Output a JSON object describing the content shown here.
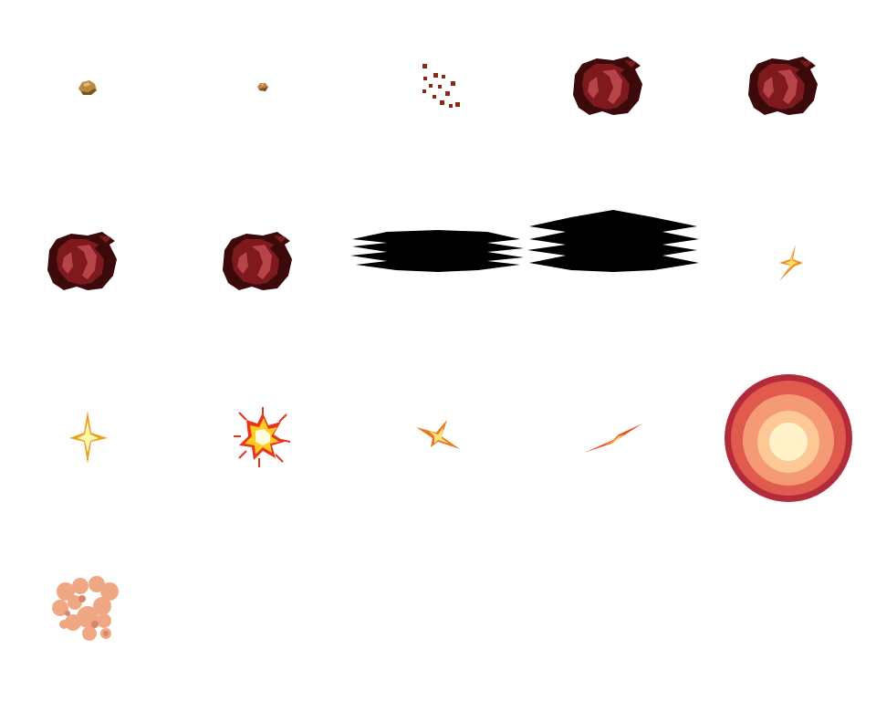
{
  "sheet": {
    "columns": 5,
    "rows": 4,
    "sprites": [
      {
        "icon": "pebble-small-icon",
        "colors": {
          "main": "#b98a3e",
          "shade": "#7a5320",
          "light": "#e2bf78"
        }
      },
      {
        "icon": "pebble-tiny-icon",
        "colors": {
          "main": "#b98a3e",
          "shade": "#7a5320",
          "light": "#e2bf78"
        }
      },
      {
        "icon": "debris-particles-icon",
        "colors": {
          "main": "#8b2a12"
        }
      },
      {
        "icon": "dark-red-vortex-icon",
        "colors": {
          "dark": "#3d0a0c",
          "mid": "#7e1a1e",
          "light": "#b6454a"
        }
      },
      {
        "icon": "dark-red-vortex-icon",
        "colors": {
          "dark": "#3d0a0c",
          "mid": "#7e1a1e",
          "light": "#b6454a"
        }
      },
      {
        "icon": "dark-red-vortex-icon",
        "colors": {
          "dark": "#3d0a0c",
          "mid": "#7e1a1e",
          "light": "#b6454a"
        }
      },
      {
        "icon": "dark-red-vortex-icon",
        "colors": {
          "dark": "#3d0a0c",
          "mid": "#7e1a1e",
          "light": "#b6454a"
        }
      },
      {
        "icon": "black-shadow-streak-icon",
        "colors": {
          "main": "#000000"
        }
      },
      {
        "icon": "black-shadow-streak-icon",
        "colors": {
          "main": "#000000"
        }
      },
      {
        "icon": "small-spark-icon",
        "colors": {
          "outer": "#f08a1c",
          "inner": "#ffe066"
        }
      },
      {
        "icon": "four-point-star-icon",
        "colors": {
          "outer": "#f0a020",
          "inner": "#fff7b0"
        }
      },
      {
        "icon": "impact-burst-icon",
        "colors": {
          "outer": "#e8341c",
          "mid": "#ffcc22",
          "inner": "#fffbe0"
        }
      },
      {
        "icon": "skewed-spark-icon",
        "colors": {
          "outer": "#e8781c",
          "inner": "#ffe080"
        }
      },
      {
        "icon": "slash-streak-icon",
        "colors": {
          "outer": "#e8541c",
          "inner": "#ffd066"
        }
      },
      {
        "icon": "glowing-orb-icon",
        "colors": {
          "ring1": "#b52a3a",
          "ring2": "#e05a4e",
          "ring3": "#f49a74",
          "ring4": "#fcc896",
          "core": "#fff2c8"
        }
      },
      {
        "icon": "dust-cloud-icon",
        "colors": {
          "main": "#f0a884",
          "shade": "#d8866a"
        }
      }
    ]
  }
}
